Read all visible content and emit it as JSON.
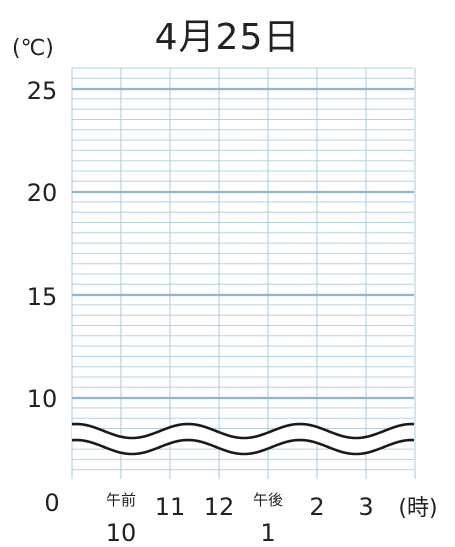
{
  "chart_data": {
    "type": "line",
    "title": "4月25日",
    "y_unit_label": "(℃)",
    "y_ticks": [
      "0",
      "10",
      "15",
      "20",
      "25"
    ],
    "y_tick_values": [
      0,
      10,
      15,
      20,
      25
    ],
    "ylim": [
      0,
      26
    ],
    "axis_break": "between 0 and 10 (wavy break lines)",
    "x_ticks": [
      {
        "small": "午前",
        "label": "10"
      },
      {
        "small": "",
        "label": "11"
      },
      {
        "small": "",
        "label": "12"
      },
      {
        "small": "午後",
        "label": "1"
      },
      {
        "small": "",
        "label": "2"
      },
      {
        "small": "",
        "label": "3"
      }
    ],
    "x_unit_label": "(時)",
    "grid": true,
    "series": []
  }
}
